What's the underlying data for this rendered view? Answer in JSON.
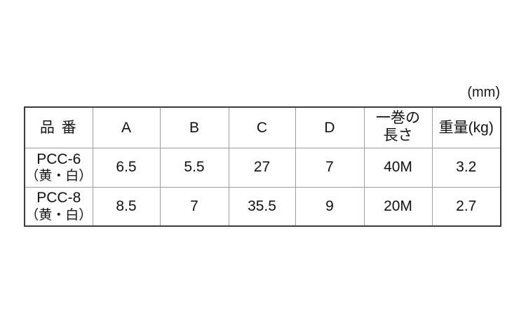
{
  "units_label": "(mm)",
  "colors": {
    "outer_border": "#3d3d3d",
    "grid_line": "#9c9c9c",
    "text": "#111111",
    "background": "#ffffff"
  },
  "table": {
    "columns": [
      {
        "label": "品 番"
      },
      {
        "label": "A"
      },
      {
        "label": "B"
      },
      {
        "label": "C"
      },
      {
        "label": "D"
      },
      {
        "label_line1": "一巻の",
        "label_line2": "長さ"
      },
      {
        "label": "重量(kg)"
      }
    ],
    "rows": [
      {
        "product_code": "PCC-6",
        "product_color": "（黄・白）",
        "A": "6.5",
        "B": "5.5",
        "C": "27",
        "D": "7",
        "roll_length": "40M",
        "weight": "3.2"
      },
      {
        "product_code": "PCC-8",
        "product_color": "（黄・白）",
        "A": "8.5",
        "B": "7",
        "C": "35.5",
        "D": "9",
        "roll_length": "20M",
        "weight": "2.7"
      }
    ]
  }
}
